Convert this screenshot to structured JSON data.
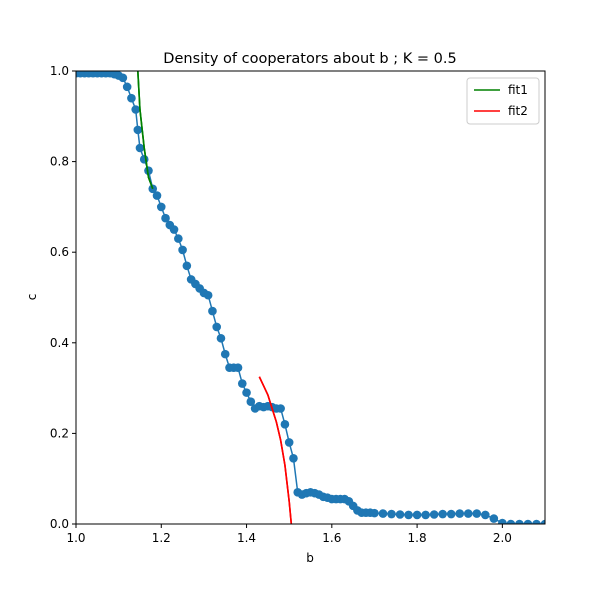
{
  "chart_data": {
    "type": "scatter",
    "title": "Density of cooperators about b ; K = 0.5",
    "xlabel": "b",
    "ylabel": "c",
    "xlim": [
      1.0,
      2.1
    ],
    "ylim": [
      0.0,
      1.0
    ],
    "xticks": [
      "1.0",
      "1.2",
      "1.4",
      "1.6",
      "1.8",
      "2.0"
    ],
    "yticks": [
      "0.0",
      "0.2",
      "0.4",
      "0.6",
      "0.8",
      "1.0"
    ],
    "grid": false,
    "legend_position": "top-right",
    "colors": {
      "data": "#1f77b4",
      "fit1": "#008000",
      "fit2": "#ff0000"
    },
    "series": [
      {
        "kind": "line+markers",
        "x": [
          1.0,
          1.01,
          1.02,
          1.03,
          1.04,
          1.05,
          1.06,
          1.07,
          1.08,
          1.09,
          1.1,
          1.11,
          1.12,
          1.13,
          1.14,
          1.145,
          1.15,
          1.16,
          1.17,
          1.18,
          1.19,
          1.2,
          1.21,
          1.22,
          1.23,
          1.24,
          1.25,
          1.26,
          1.27,
          1.28,
          1.29,
          1.3,
          1.31,
          1.32,
          1.33,
          1.34,
          1.35,
          1.36,
          1.37,
          1.38,
          1.39,
          1.4,
          1.41,
          1.42,
          1.43,
          1.44,
          1.45,
          1.46,
          1.47,
          1.48,
          1.49,
          1.5,
          1.51,
          1.52,
          1.53,
          1.54,
          1.55,
          1.56,
          1.57,
          1.58,
          1.59,
          1.6,
          1.61,
          1.62,
          1.63,
          1.64,
          1.65,
          1.66,
          1.67,
          1.68,
          1.69,
          1.7,
          1.72,
          1.74,
          1.76,
          1.78,
          1.8,
          1.82,
          1.84,
          1.86,
          1.88,
          1.9,
          1.92,
          1.94,
          1.96,
          1.98,
          2.0,
          2.02,
          2.04,
          2.06,
          2.08,
          2.1
        ],
        "y": [
          0.995,
          0.995,
          0.995,
          0.995,
          0.995,
          0.995,
          0.995,
          0.995,
          0.995,
          0.993,
          0.99,
          0.985,
          0.965,
          0.94,
          0.915,
          0.87,
          0.83,
          0.805,
          0.78,
          0.74,
          0.725,
          0.7,
          0.675,
          0.66,
          0.65,
          0.63,
          0.605,
          0.57,
          0.54,
          0.53,
          0.52,
          0.51,
          0.505,
          0.47,
          0.435,
          0.41,
          0.375,
          0.345,
          0.345,
          0.345,
          0.31,
          0.29,
          0.27,
          0.255,
          0.26,
          0.258,
          0.26,
          0.258,
          0.255,
          0.255,
          0.22,
          0.18,
          0.145,
          0.07,
          0.065,
          0.068,
          0.07,
          0.068,
          0.065,
          0.06,
          0.058,
          0.055,
          0.055,
          0.055,
          0.055,
          0.05,
          0.04,
          0.03,
          0.025,
          0.025,
          0.025,
          0.024,
          0.023,
          0.022,
          0.021,
          0.02,
          0.02,
          0.02,
          0.021,
          0.022,
          0.022,
          0.023,
          0.023,
          0.023,
          0.02,
          0.012,
          0.002,
          0.0,
          0.0,
          0.0,
          0.0,
          0.0
        ]
      },
      {
        "name": "fit1",
        "kind": "line",
        "x": [
          1.145,
          1.15,
          1.16,
          1.17,
          1.18
        ],
        "y": [
          1.0,
          0.915,
          0.83,
          0.765,
          0.74
        ]
      },
      {
        "name": "fit2",
        "kind": "line",
        "x": [
          1.43,
          1.44,
          1.45,
          1.46,
          1.47,
          1.48,
          1.49,
          1.5,
          1.505
        ],
        "y": [
          0.325,
          0.305,
          0.285,
          0.255,
          0.225,
          0.185,
          0.13,
          0.05,
          0.0
        ]
      }
    ]
  }
}
